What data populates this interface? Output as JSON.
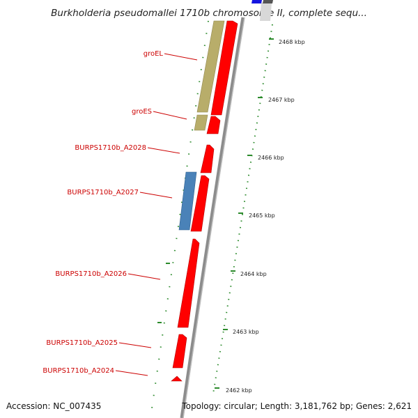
{
  "title": "Burkholderia pseudomallei 1710b chromosome II, complete sequ...",
  "footer": {
    "accession": "Accession: NC_007435",
    "topology": "Topology: circular; Length: 3,181,762 bp; Genes: 2,621"
  },
  "colors": {
    "cds": "#ff0000",
    "gene_label": "#cc0000",
    "rrna_khaki": "#b8ad6a",
    "rrna_blue": "#4a82b8",
    "backbone": "#999999",
    "tick": "#2b8a2b",
    "top_marker": "#1515e0"
  },
  "gene_labels": [
    {
      "name": "groEL"
    },
    {
      "name": "groES"
    },
    {
      "name": "BURPS1710b_A2028"
    },
    {
      "name": "BURPS1710b_A2027"
    },
    {
      "name": "BURPS1710b_A2026"
    },
    {
      "name": "BURPS1710b_A2025"
    },
    {
      "name": "BURPS1710b_A2024"
    }
  ],
  "kbp_labels": [
    "2468 kbp",
    "2467 kbp",
    "2466 kbp",
    "2465 kbp",
    "2464 kbp",
    "2463 kbp",
    "2462 kbp"
  ]
}
